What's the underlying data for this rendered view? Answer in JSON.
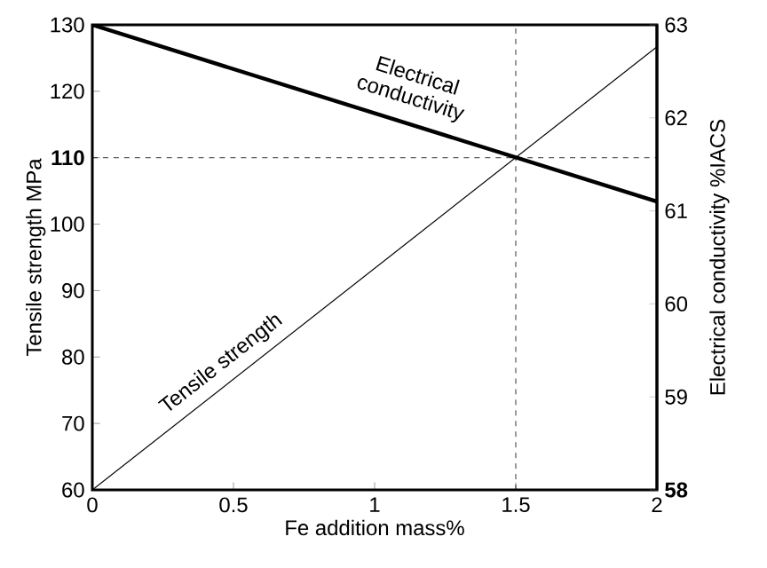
{
  "chart_data": {
    "type": "line",
    "xlabel": "Fe addition  mass%",
    "ylabel": "Tensile strength  MPa",
    "y2label": "Electrical conductivity  %IACS",
    "xlim": [
      0,
      2
    ],
    "xticks": [
      0,
      0.5,
      1,
      1.5,
      2
    ],
    "ylim": [
      60,
      130
    ],
    "yticks": [
      60,
      70,
      80,
      90,
      100,
      {
        "value": 110,
        "label": "**110**"
      },
      120,
      130
    ],
    "y2lim": [
      58,
      63
    ],
    "y2ticks": [
      {
        "value": 58,
        "label": "**58**"
      },
      59,
      60,
      61,
      62,
      63
    ],
    "grid": false,
    "x": [
      0,
      2
    ],
    "series": [
      {
        "name": "Tensile strength",
        "color": "#000000",
        "values": [
          60,
          126.7
        ]
      },
      {
        "name": "Electrical conductivity",
        "color": "#000000",
        "axis": "y2",
        "values": [
          63,
          61.1
        ]
      }
    ],
    "ref_lines": [
      {
        "axis": "x",
        "value": 1.5,
        "line_style": "dashed"
      },
      {
        "axis": "y",
        "value": 110,
        "line_style": "dashed"
      }
    ]
  }
}
